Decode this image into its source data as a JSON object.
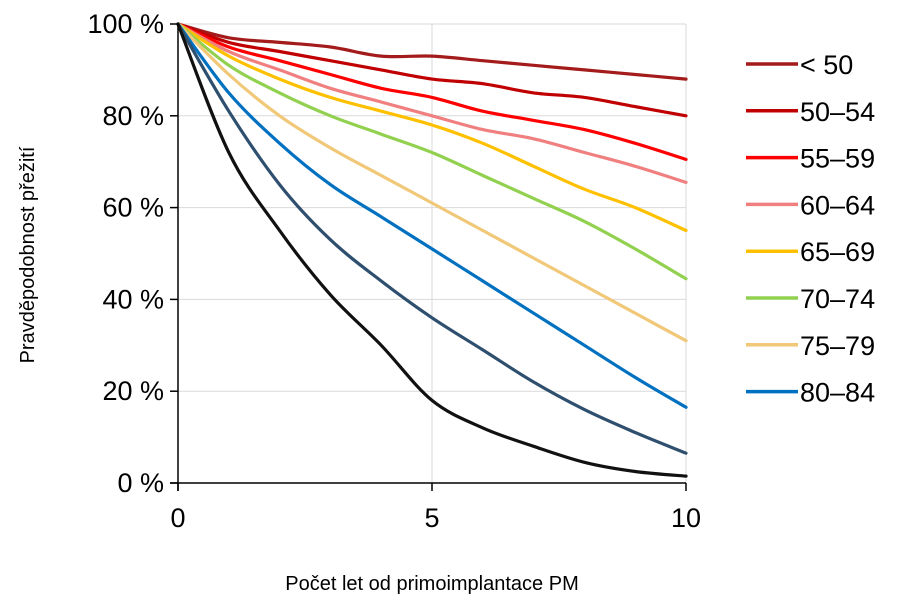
{
  "chart_data": {
    "type": "line",
    "title": "",
    "xlabel": "Počet let od primoimplantace PM",
    "ylabel": "Pravděpodobnost přežití",
    "xlim": [
      0,
      10
    ],
    "ylim": [
      0,
      100
    ],
    "x_ticks": [
      0,
      5,
      10
    ],
    "x_tick_labels": [
      "0",
      "5",
      "10"
    ],
    "y_ticks": [
      0,
      20,
      40,
      60,
      80,
      100
    ],
    "y_tick_labels": [
      "0 %",
      "20 %",
      "40 %",
      "60 %",
      "80 %",
      "100 %"
    ],
    "grid": true,
    "legend_position": "right",
    "x": [
      0,
      1,
      2,
      3,
      4,
      5,
      6,
      7,
      8,
      9,
      10
    ],
    "series": [
      {
        "name": "< 50",
        "color": "#A31B1B",
        "values": [
          100,
          97,
          96,
          95,
          93,
          93,
          92,
          91,
          90,
          89,
          88
        ]
      },
      {
        "name": "50–54",
        "color": "#C00000",
        "values": [
          100,
          96,
          94,
          92,
          90,
          88,
          87,
          85,
          84,
          82,
          80
        ]
      },
      {
        "name": "55–59",
        "color": "#FF0000",
        "values": [
          100,
          95,
          92,
          89,
          86,
          84,
          81,
          79,
          77,
          74,
          70.5
        ]
      },
      {
        "name": "60–64",
        "color": "#F08080",
        "values": [
          100,
          94,
          90,
          86,
          83,
          80,
          77,
          75,
          72,
          69,
          65.5
        ]
      },
      {
        "name": "65–69",
        "color": "#FFC000",
        "values": [
          100,
          93,
          88,
          84,
          81,
          78,
          74,
          69,
          64,
          60,
          55
        ]
      },
      {
        "name": "70–74",
        "color": "#92D050",
        "values": [
          100,
          91,
          85,
          80,
          76,
          72,
          67,
          62,
          57,
          51,
          44.5
        ]
      },
      {
        "name": "75–79",
        "color": "#F0C878",
        "values": [
          100,
          89,
          80,
          73,
          67,
          61,
          55,
          49,
          43,
          37,
          31
        ]
      },
      {
        "name": "80–84",
        "color": "#0070C0",
        "values": [
          100,
          85,
          74,
          65,
          58,
          51,
          44,
          37,
          30,
          23,
          16.5
        ]
      },
      {
        "name": "",
        "color": "#2F4F6F",
        "values": [
          100,
          81,
          65,
          53,
          44,
          36,
          29,
          22,
          16,
          11,
          6.5
        ]
      },
      {
        "name": "",
        "color": "#111111",
        "values": [
          100,
          72,
          55,
          41,
          30,
          18,
          12,
          8,
          4.5,
          2.5,
          1.5
        ]
      }
    ]
  }
}
